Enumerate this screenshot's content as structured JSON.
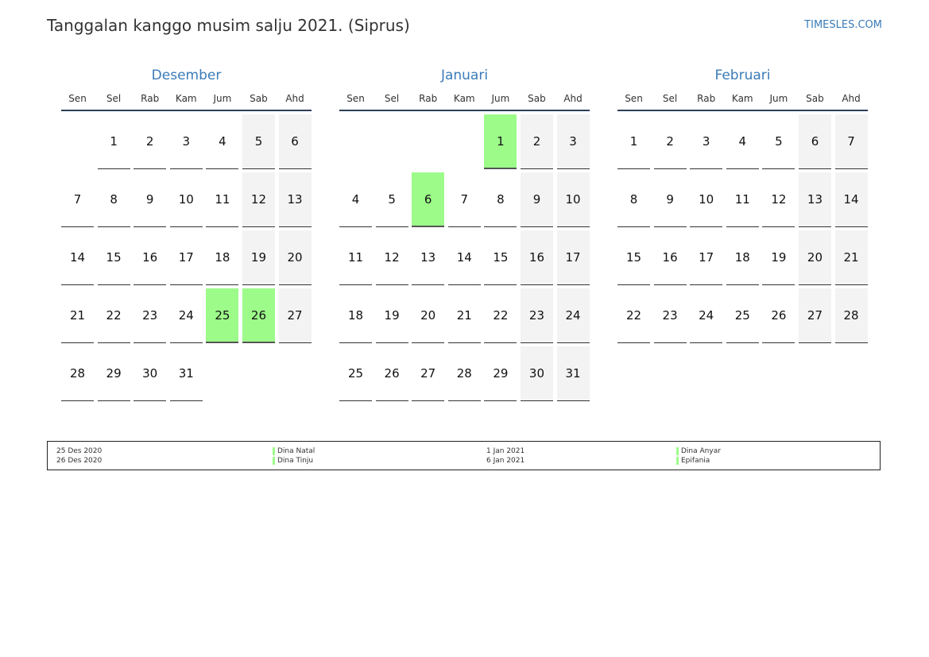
{
  "header": {
    "title": "Tanggalan kanggo musim salju 2021. (Siprus)",
    "site": "TIMESLES.COM"
  },
  "weekdays": [
    "Sen",
    "Sel",
    "Rab",
    "Kam",
    "Jum",
    "Sab",
    "Ahd"
  ],
  "months": [
    {
      "name": "Desember",
      "weeks": [
        [
          "",
          "1",
          "2",
          "3",
          "4",
          "5",
          "6"
        ],
        [
          "7",
          "8",
          "9",
          "10",
          "11",
          "12",
          "13"
        ],
        [
          "14",
          "15",
          "16",
          "17",
          "18",
          "19",
          "20"
        ],
        [
          "21",
          "22",
          "23",
          "24",
          "25",
          "26",
          "27"
        ],
        [
          "28",
          "29",
          "30",
          "31",
          "",
          "",
          ""
        ]
      ],
      "holidays": [
        "25",
        "26"
      ]
    },
    {
      "name": "Januari",
      "weeks": [
        [
          "",
          "",
          "",
          "",
          "1",
          "2",
          "3"
        ],
        [
          "4",
          "5",
          "6",
          "7",
          "8",
          "9",
          "10"
        ],
        [
          "11",
          "12",
          "13",
          "14",
          "15",
          "16",
          "17"
        ],
        [
          "18",
          "19",
          "20",
          "21",
          "22",
          "23",
          "24"
        ],
        [
          "25",
          "26",
          "27",
          "28",
          "29",
          "30",
          "31"
        ]
      ],
      "holidays": [
        "1",
        "6"
      ]
    },
    {
      "name": "Februari",
      "weeks": [
        [
          "1",
          "2",
          "3",
          "4",
          "5",
          "6",
          "7"
        ],
        [
          "8",
          "9",
          "10",
          "11",
          "12",
          "13",
          "14"
        ],
        [
          "15",
          "16",
          "17",
          "18",
          "19",
          "20",
          "21"
        ],
        [
          "22",
          "23",
          "24",
          "25",
          "26",
          "27",
          "28"
        ]
      ],
      "holidays": []
    }
  ],
  "legend": [
    {
      "date": "25 Des 2020",
      "name": "Dina Natal"
    },
    {
      "date": "26 Des 2020",
      "name": "Dina Tinju"
    },
    {
      "date": "1 Jan 2021",
      "name": "Dina Anyar"
    },
    {
      "date": "6 Jan 2021",
      "name": "Epifania"
    }
  ],
  "colors": {
    "holiday": "#9dfb8a",
    "weekend": "#f3f3f3",
    "accent": "#3a7bb8"
  }
}
